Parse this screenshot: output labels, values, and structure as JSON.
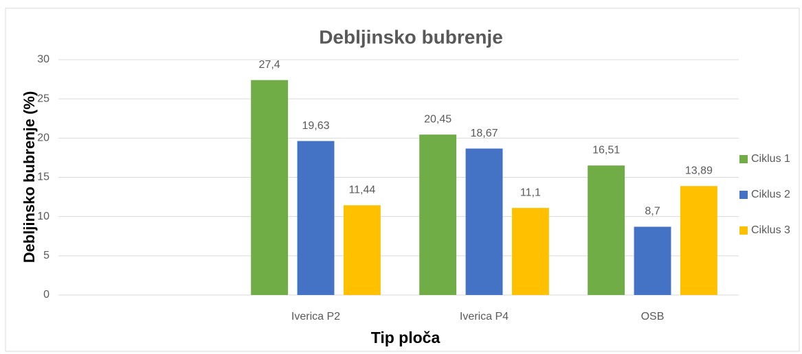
{
  "chart_data": {
    "type": "bar",
    "title": "Debljinsko bubrenje",
    "x_label": "Tip ploča",
    "y_label": "Debljinsko bubrenje (%)",
    "categories": [
      null,
      "Iverica P2",
      "Iverica P4",
      "OSB"
    ],
    "series": [
      {
        "name": "Ciklus 1",
        "color": "#70ad47",
        "values": [
          null,
          27.4,
          20.45,
          16.51
        ],
        "value_labels": [
          null,
          "27,4",
          "20,45",
          "16,51"
        ]
      },
      {
        "name": "Ciklus 2",
        "color": "#4472c4",
        "values": [
          null,
          19.63,
          18.67,
          8.7
        ],
        "value_labels": [
          null,
          "19,63",
          "18,67",
          "8,7"
        ]
      },
      {
        "name": "Ciklus 3",
        "color": "#ffc000",
        "values": [
          null,
          11.44,
          11.1,
          13.89
        ],
        "value_labels": [
          null,
          "11,44",
          "11,1",
          "13,89"
        ]
      }
    ],
    "ylim": [
      0,
      30
    ],
    "yticks": [
      0,
      5,
      10,
      15,
      20,
      25,
      30
    ],
    "grid": true,
    "legend": "right"
  }
}
